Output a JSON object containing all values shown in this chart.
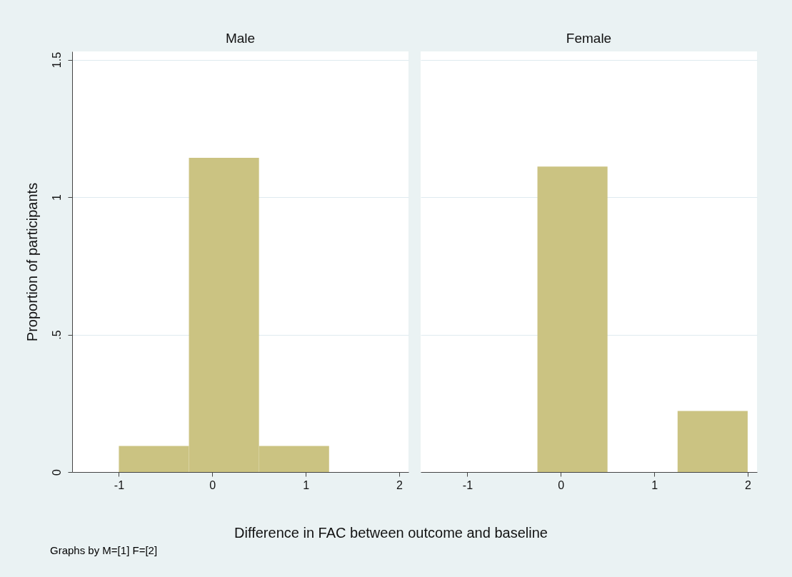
{
  "chart_data": [
    {
      "type": "histogram",
      "title": "Male",
      "xlabel": "Difference in FAC between outcome and baseline",
      "ylabel": "Proportion of participants",
      "annotations": [
        "Graphs by M=[1]   F=[2]"
      ],
      "bins": [
        -1,
        -0.25,
        0.5,
        1.25,
        2
      ],
      "values": [
        0.095,
        1.143,
        0.095,
        0
      ],
      "color": "#cbc382",
      "xlim": [
        -1.5,
        2.1
      ],
      "xticks": [
        -1,
        0,
        1,
        2
      ],
      "ylim": [
        0,
        1.53
      ],
      "yticks": [
        0,
        {
          "value": 0.5,
          "label": ".5"
        },
        1,
        1.5
      ],
      "grid": "y"
    },
    {
      "type": "histogram",
      "title": "Female",
      "bins": [
        -1,
        -0.25,
        0.5,
        1.25,
        2
      ],
      "values": [
        0,
        1.111,
        0,
        0.222
      ],
      "color": "#cbc382",
      "xlim": [
        -1.5,
        2.1
      ],
      "xticks": [
        -1,
        0,
        1,
        2
      ],
      "ylim": [
        0,
        1.53
      ],
      "yticks": [
        0,
        0.5,
        1,
        1.5
      ],
      "grid": "y",
      "tick_labels": "x"
    }
  ]
}
